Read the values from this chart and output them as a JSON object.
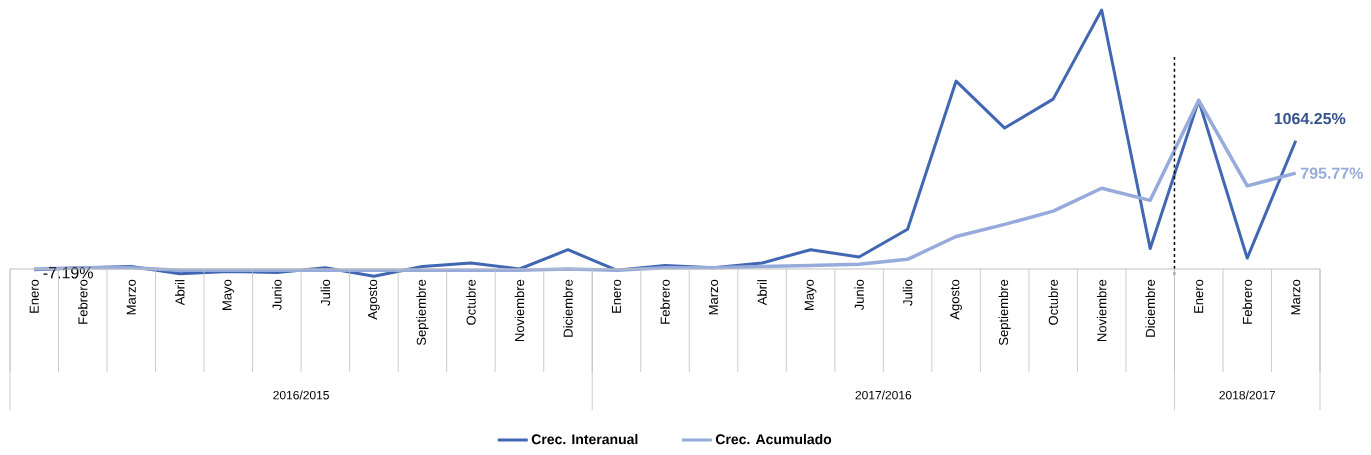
{
  "chart_data": {
    "type": "line",
    "categories": [
      "Enero",
      "Febrero",
      "Marzo",
      "Abril",
      "Mayo",
      "Junio",
      "Julio",
      "Agosto",
      "Septiembre",
      "Octubre",
      "Noviembre",
      "Diciembre",
      "Enero",
      "Febrero",
      "Marzo",
      "Abril",
      "Mayo",
      "Junio",
      "Julio",
      "Agosto",
      "Septiembre",
      "Octubre",
      "Noviembre",
      "Diciembre",
      "Enero",
      "Febrero",
      "Marzo"
    ],
    "series": [
      {
        "name": "Crec. Interanual",
        "color": "#4166b2",
        "values": [
          -7.19,
          10,
          20,
          -40,
          -20,
          -30,
          10,
          -60,
          20,
          50,
          0,
          160,
          -10,
          30,
          10,
          50,
          160,
          100,
          330,
          1560,
          1170,
          1410,
          2150,
          170,
          1400,
          90,
          1064.25
        ],
        "value_labels": [
          "-7.19%",
          null,
          null,
          null,
          null,
          null,
          null,
          null,
          null,
          null,
          null,
          null,
          null,
          null,
          null,
          null,
          null,
          null,
          null,
          null,
          null,
          null,
          null,
          null,
          null,
          null,
          "1064.25%"
        ]
      },
      {
        "name": "Crec. Acumulado",
        "color": "#96aadb",
        "values": [
          0,
          10,
          10,
          -10,
          -10,
          -10,
          -10,
          -10,
          -10,
          -10,
          -10,
          0,
          -10,
          10,
          10,
          20,
          30,
          40,
          80,
          270,
          370,
          480,
          670,
          570,
          1400,
          690,
          795.77
        ],
        "value_labels": [
          null,
          null,
          null,
          null,
          null,
          null,
          null,
          null,
          null,
          null,
          null,
          null,
          null,
          null,
          null,
          null,
          null,
          null,
          null,
          null,
          null,
          null,
          null,
          null,
          null,
          null,
          "795.77%"
        ]
      }
    ],
    "annotations": [
      "2016/2015",
      "2017/2016",
      "2018/2017"
    ],
    "legend": "bottom",
    "marker": "none",
    "line_style": "solid"
  }
}
